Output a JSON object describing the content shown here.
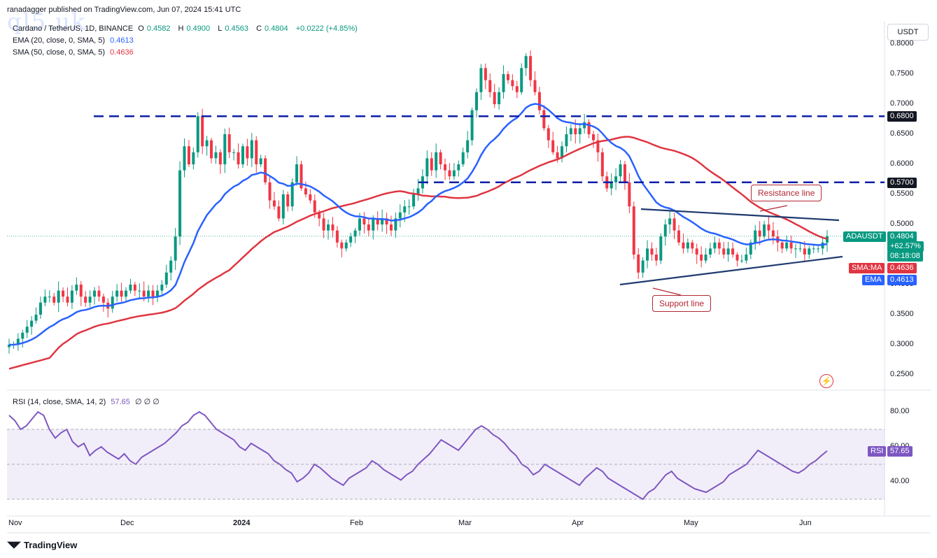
{
  "header": {
    "published": "ranadagger published on TradingView.com, Jun 07, 2024 15:41 UTC"
  },
  "watermark": "ql5.uk",
  "legend": {
    "symbol": "Cardano / TetherUS, 1D, BINANCE",
    "open_label": "O",
    "open": "0.4582",
    "high_label": "H",
    "high": "0.4900",
    "low_label": "L",
    "low": "0.4563",
    "close_label": "C",
    "close": "0.4804",
    "change": "+0.0222 (+4.85%)",
    "ema_label": "EMA (20, close, 0, SMA, 5)",
    "ema_value": "0.4613",
    "sma_label": "SMA (50, close, 0, SMA, 5)",
    "sma_value": "0.4636",
    "rsi_label": "RSI (14, close, SMA, 14, 2)",
    "rsi_value": "57.65",
    "rsi_extra": "∅ ∅ ∅"
  },
  "currency_button": "USDT",
  "price_axis": [
    "0.8000",
    "0.7500",
    "0.7000",
    "0.6500",
    "0.6000",
    "0.5500",
    "0.5000",
    "0.4500",
    "0.4000",
    "0.3500",
    "0.3000",
    "0.2500"
  ],
  "rsi_axis": [
    "80.00",
    "60.00",
    "40.00"
  ],
  "time_axis": [
    "Nov",
    "Dec",
    "2024",
    "Feb",
    "Mar",
    "Apr",
    "May",
    "Jun"
  ],
  "tags": {
    "level_high": "0.6800",
    "level_mid": "0.5700",
    "symbol_tag": "ADAUSDT",
    "symbol_price": "0.4804",
    "symbol_change": "+62.57%",
    "countdown": "08:18:08",
    "sma_tag": "SMA:MA",
    "sma_val": "0.4636",
    "ema_tag": "EMA",
    "ema_val": "0.4613",
    "rsi_tag": "RSI",
    "rsi_val": "57.65"
  },
  "annotations": {
    "resistance": "Resistance line",
    "support": "Support line"
  },
  "footer": "TradingView",
  "colors": {
    "up": "#089981",
    "down": "#f23645",
    "ema": "#2962ff",
    "sma": "#e03541",
    "rsi": "#7e57c2",
    "trendline": "#1e3a6e",
    "level": "#0d1fa8"
  },
  "chart_data": {
    "type": "candlestick",
    "title": "Cardano / TetherUS, 1D, BINANCE",
    "ylim": [
      0.24,
      0.82
    ],
    "horizontal_levels": [
      0.68,
      0.57
    ],
    "candles_close": [
      0.3,
      0.3,
      0.31,
      0.32,
      0.33,
      0.34,
      0.35,
      0.37,
      0.38,
      0.38,
      0.37,
      0.39,
      0.38,
      0.37,
      0.39,
      0.4,
      0.38,
      0.37,
      0.38,
      0.39,
      0.38,
      0.37,
      0.36,
      0.38,
      0.39,
      0.38,
      0.39,
      0.4,
      0.39,
      0.39,
      0.38,
      0.39,
      0.38,
      0.39,
      0.4,
      0.42,
      0.44,
      0.48,
      0.59,
      0.63,
      0.6,
      0.62,
      0.68,
      0.63,
      0.64,
      0.61,
      0.62,
      0.6,
      0.65,
      0.62,
      0.62,
      0.6,
      0.63,
      0.61,
      0.64,
      0.6,
      0.61,
      0.57,
      0.54,
      0.53,
      0.51,
      0.55,
      0.53,
      0.57,
      0.6,
      0.56,
      0.55,
      0.54,
      0.52,
      0.51,
      0.49,
      0.5,
      0.49,
      0.47,
      0.46,
      0.47,
      0.48,
      0.49,
      0.51,
      0.5,
      0.49,
      0.51,
      0.5,
      0.51,
      0.5,
      0.49,
      0.51,
      0.52,
      0.53,
      0.53,
      0.55,
      0.56,
      0.58,
      0.61,
      0.59,
      0.62,
      0.6,
      0.59,
      0.58,
      0.59,
      0.6,
      0.62,
      0.64,
      0.69,
      0.72,
      0.76,
      0.74,
      0.72,
      0.7,
      0.72,
      0.75,
      0.74,
      0.73,
      0.72,
      0.76,
      0.78,
      0.74,
      0.72,
      0.69,
      0.66,
      0.64,
      0.62,
      0.61,
      0.63,
      0.65,
      0.66,
      0.65,
      0.66,
      0.67,
      0.65,
      0.64,
      0.62,
      0.58,
      0.56,
      0.57,
      0.58,
      0.6,
      0.57,
      0.53,
      0.45,
      0.42,
      0.44,
      0.46,
      0.45,
      0.44,
      0.48,
      0.5,
      0.51,
      0.49,
      0.47,
      0.46,
      0.47,
      0.46,
      0.45,
      0.44,
      0.45,
      0.46,
      0.47,
      0.46,
      0.45,
      0.46,
      0.45,
      0.44,
      0.44,
      0.45,
      0.47,
      0.49,
      0.48,
      0.5,
      0.49,
      0.48,
      0.47,
      0.46,
      0.47,
      0.46,
      0.46,
      0.46,
      0.45,
      0.46,
      0.46,
      0.46,
      0.47,
      0.4804
    ],
    "rsi": [
      78,
      75,
      70,
      72,
      76,
      80,
      78,
      70,
      65,
      68,
      70,
      63,
      60,
      62,
      55,
      58,
      60,
      57,
      55,
      53,
      56,
      52,
      50,
      54,
      56,
      58,
      60,
      62,
      65,
      68,
      72,
      74,
      78,
      80,
      78,
      74,
      70,
      68,
      66,
      64,
      60,
      58,
      62,
      60,
      58,
      56,
      52,
      50,
      47,
      45,
      40,
      42,
      45,
      50,
      48,
      45,
      42,
      40,
      38,
      42,
      44,
      46,
      48,
      52,
      50,
      47,
      45,
      43,
      41,
      44,
      46,
      50,
      53,
      56,
      60,
      64,
      62,
      60,
      58,
      62,
      66,
      70,
      72,
      70,
      67,
      65,
      62,
      58,
      55,
      50,
      48,
      44,
      46,
      50,
      48,
      46,
      44,
      42,
      40,
      38,
      42,
      45,
      48,
      46,
      42,
      40,
      38,
      36,
      34,
      32,
      30,
      34,
      36,
      40,
      44,
      46,
      42,
      40,
      38,
      36,
      35,
      34,
      36,
      38,
      40,
      44,
      46,
      48,
      50,
      54,
      58,
      56,
      54,
      52,
      50,
      48,
      46,
      45,
      47,
      50,
      52,
      55,
      57.65
    ],
    "resistance_line": [
      [
        0.523
      ],
      [
        0.506
      ]
    ],
    "support_line": [
      [
        0.402
      ],
      [
        0.451
      ]
    ]
  }
}
